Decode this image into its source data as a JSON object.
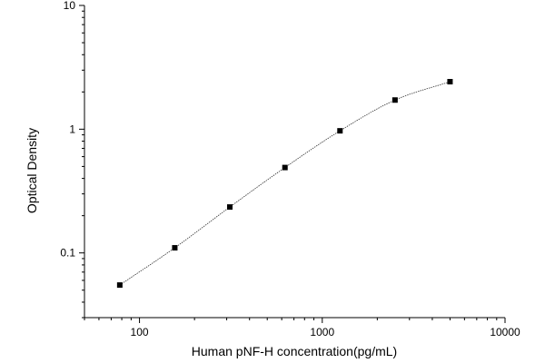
{
  "chart_data": {
    "type": "scatter",
    "title": "",
    "xlabel": "Human pNF-H concentration(pg/mL)",
    "ylabel": "Optical Density",
    "x_scale": "log",
    "y_scale": "log",
    "xlim": [
      50,
      10000
    ],
    "ylim": [
      0.03,
      10
    ],
    "x_ticks": [
      100,
      1000,
      10000
    ],
    "x_tick_labels": [
      "100",
      "1000",
      "10000"
    ],
    "y_ticks": [
      0.1,
      1,
      10
    ],
    "y_tick_labels": [
      "0.1",
      "1",
      "10"
    ],
    "grid": false,
    "legend": "none",
    "series": [
      {
        "x": [
          78,
          156,
          312,
          625,
          1250,
          2500,
          5000
        ],
        "y": [
          0.055,
          0.11,
          0.235,
          0.49,
          0.97,
          1.72,
          2.42
        ]
      }
    ],
    "fit_curve": true,
    "colors": {
      "marker": "#000000",
      "curve": "#333333",
      "axis": "#000000"
    }
  }
}
